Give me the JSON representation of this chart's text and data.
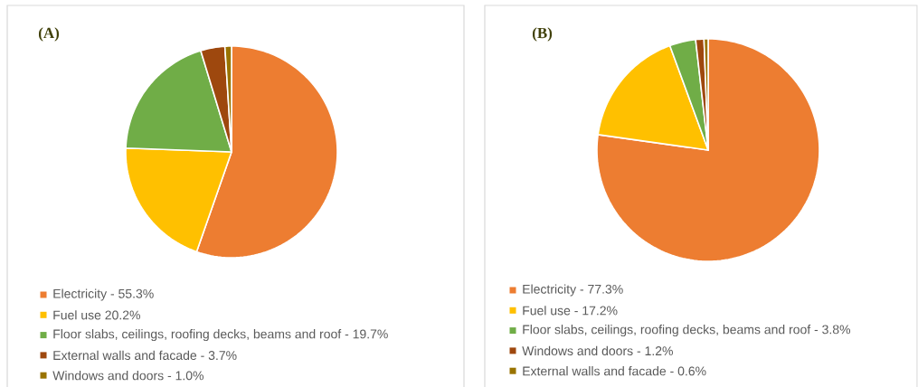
{
  "chart_data": [
    {
      "type": "pie",
      "title": "(A)",
      "categories": [
        "Electricity - 55.3%",
        "Fuel use 20.2%",
        "Floor slabs, ceilings, roofing decks, beams and roof - 19.7%",
        "External walls and facade - 3.7%",
        "Windows and doors - 1.0%"
      ],
      "values": [
        55.3,
        20.2,
        19.7,
        3.7,
        1.0
      ],
      "colors": [
        "#ed7d31",
        "#ffc000",
        "#70ad47",
        "#9e480e",
        "#997300"
      ],
      "legend": "bottom"
    },
    {
      "type": "pie",
      "title": "(B)",
      "categories": [
        "Electricity -  77.3%",
        "Fuel use - 17.2%",
        "Floor slabs, ceilings, roofing decks, beams and roof - 3.8%",
        "Windows and doors - 1.2%",
        "External walls and facade - 0.6%"
      ],
      "values": [
        77.3,
        17.2,
        3.8,
        1.2,
        0.6
      ],
      "colors": [
        "#ed7d31",
        "#ffc000",
        "#70ad47",
        "#9e480e",
        "#997300"
      ],
      "legend": "bottom"
    }
  ]
}
